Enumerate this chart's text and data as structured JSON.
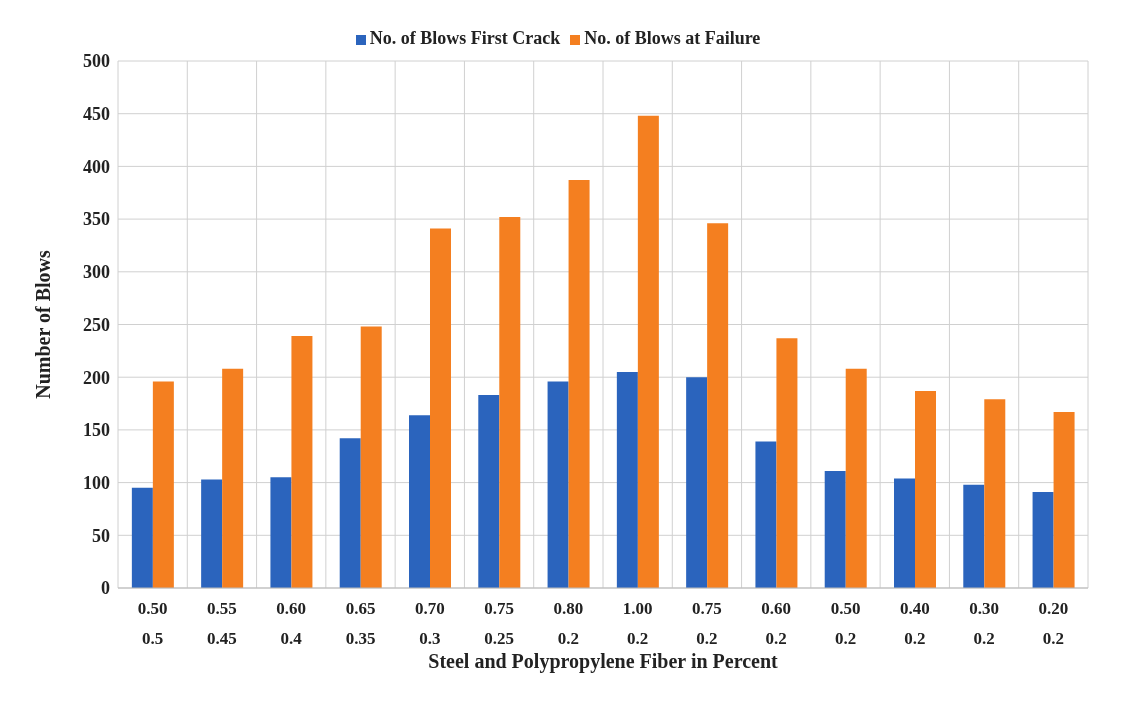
{
  "chart_data": {
    "type": "bar",
    "xlabel": "Steel and Polypropylene Fiber in Percent",
    "ylabel": "Number of Blows",
    "categories": [
      "0.50\n0.5",
      "0.55\n0.45",
      "0.60\n0.4",
      "0.65\n0.35",
      "0.70\n0.3",
      "0.75\n0.25",
      "0.80\n0.2",
      "1.00\n0.2",
      "0.75\n0.2",
      "0.60\n0.2",
      "0.50\n0.2",
      "0.40\n0.2",
      "0.30\n0.2",
      "0.20\n0.2"
    ],
    "series": [
      {
        "name": "No. of Blows First Crack",
        "color": "#2b64bd",
        "values": [
          95,
          103,
          105,
          142,
          164,
          183,
          196,
          205,
          200,
          139,
          111,
          104,
          98,
          91
        ]
      },
      {
        "name": "No. of Blows at Failure",
        "color": "#f47f20",
        "values": [
          196,
          208,
          239,
          248,
          341,
          352,
          387,
          448,
          346,
          237,
          208,
          187,
          179,
          167
        ]
      }
    ],
    "ylim": [
      0,
      500
    ],
    "yticks": [
      0,
      50,
      100,
      150,
      200,
      250,
      300,
      350,
      400,
      450,
      500
    ],
    "grid": true,
    "legend": "top"
  }
}
